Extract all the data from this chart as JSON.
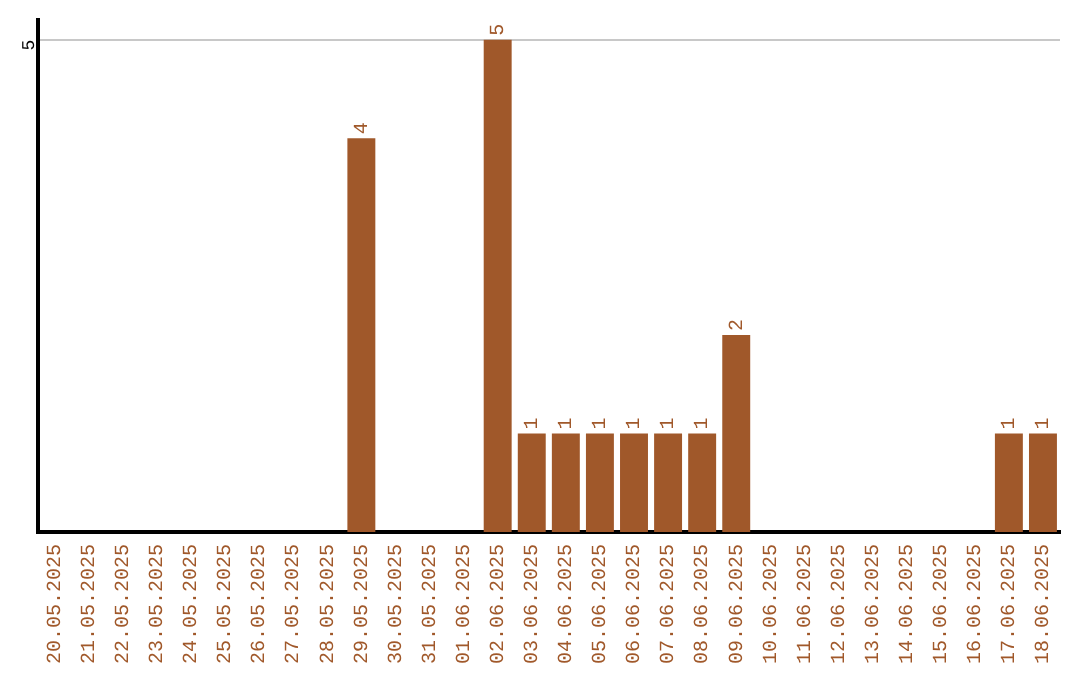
{
  "chart_data": {
    "type": "bar",
    "categories": [
      "20.05.2025",
      "21.05.2025",
      "22.05.2025",
      "23.05.2025",
      "24.05.2025",
      "25.05.2025",
      "26.05.2025",
      "27.05.2025",
      "28.05.2025",
      "29.05.2025",
      "30.05.2025",
      "31.05.2025",
      "01.06.2025",
      "02.06.2025",
      "03.06.2025",
      "04.06.2025",
      "05.06.2025",
      "06.06.2025",
      "07.06.2025",
      "08.06.2025",
      "09.06.2025",
      "10.06.2025",
      "11.06.2025",
      "12.06.2025",
      "13.06.2025",
      "14.06.2025",
      "15.06.2025",
      "16.06.2025",
      "17.06.2025",
      "18.06.2025"
    ],
    "values": [
      0,
      0,
      0,
      0,
      0,
      0,
      0,
      0,
      0,
      4,
      0,
      0,
      0,
      5,
      1,
      1,
      1,
      1,
      1,
      1,
      2,
      0,
      0,
      0,
      0,
      0,
      0,
      0,
      1,
      1
    ],
    "value_labels": [
      null,
      null,
      null,
      null,
      null,
      null,
      null,
      null,
      null,
      "4",
      null,
      null,
      null,
      "5",
      "1",
      "1",
      "1",
      "1",
      "1",
      "1",
      "2",
      null,
      null,
      null,
      null,
      null,
      null,
      null,
      "1",
      "1"
    ],
    "color": "#a0582a",
    "ylim": [
      0,
      5.2
    ],
    "yticks": [
      5
    ],
    "grid": "y",
    "legend": false
  }
}
